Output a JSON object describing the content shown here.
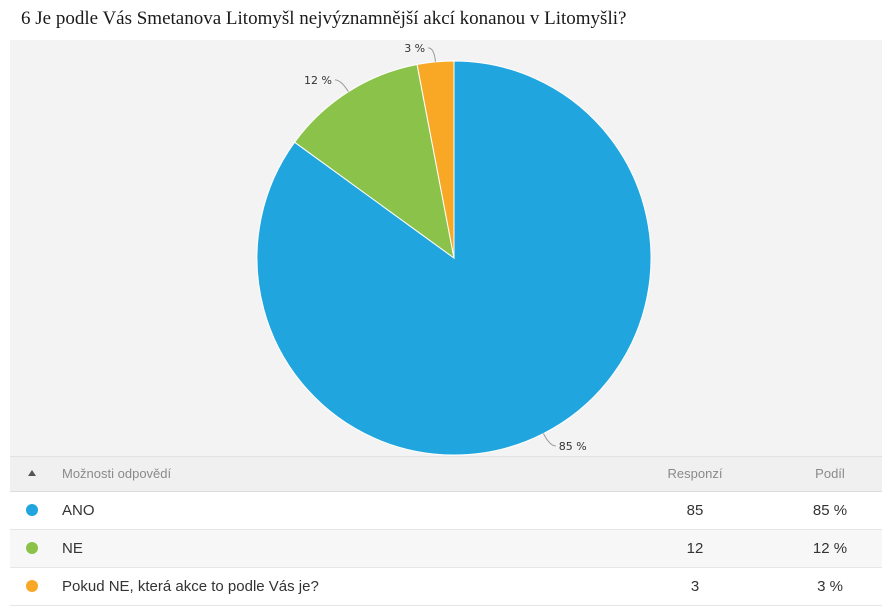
{
  "title": "6 Je podle Vás Smetanova Litomyšl nejvýznamnější akcí konanou v Litomyšli?",
  "chart_data": {
    "type": "pie",
    "title": "6 Je podle Vás Smetanova Litomyšl nejvýznamnější akcí konanou v Litomyšli?",
    "slices": [
      {
        "label": "ANO",
        "value": 85,
        "display": "85 %",
        "color": "#21a5de"
      },
      {
        "label": "NE",
        "value": 12,
        "display": "12 %",
        "color": "#8bc34a"
      },
      {
        "label": "Pokud NE, která akce to podle Vás je?",
        "value": 3,
        "display": "3 %",
        "color": "#f9a825"
      }
    ]
  },
  "table": {
    "headers": {
      "label": "Možnosti odpovědí",
      "count": "Responzí",
      "share": "Podíl"
    },
    "rows": [
      {
        "label": "ANO",
        "count": "85",
        "share": "85 %",
        "color": "#21a5de"
      },
      {
        "label": "NE",
        "count": "12",
        "share": "12 %",
        "color": "#8bc34a"
      },
      {
        "label": "Pokud NE, která akce to podle Vás je?",
        "count": "3",
        "share": "3 %",
        "color": "#f9a825"
      }
    ]
  }
}
